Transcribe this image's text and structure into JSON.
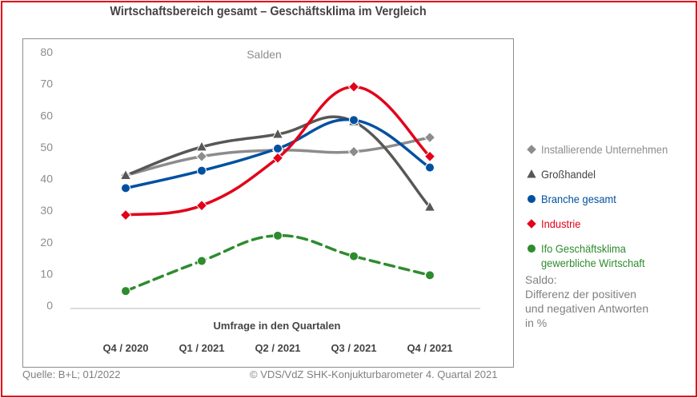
{
  "chart_data": {
    "type": "line",
    "title": "Wirtschaftsbereich gesamt – Geschäftsklima im Vergleich",
    "subtitle": "Salden",
    "xlabel": "Umfrage in den Quartalen",
    "ylabel": "",
    "categories": [
      "Q4 / 2020",
      "Q1 / 2021",
      "Q2 / 2021",
      "Q3 / 2021",
      "Q4 / 2021"
    ],
    "ylim": [
      0,
      80
    ],
    "yticks": [
      0,
      10,
      20,
      30,
      40,
      50,
      60,
      70,
      80
    ],
    "grid": false,
    "legend_position": "right",
    "series": [
      {
        "name": "Installierende Unternehmen",
        "color": "#8c8c8c",
        "marker": "diamond",
        "dashed": false,
        "values": [
          41,
          47,
          49,
          48.5,
          53
        ]
      },
      {
        "name": "Großhandel",
        "color": "#575757",
        "marker": "triangle",
        "dashed": false,
        "values": [
          41,
          50,
          54,
          58,
          31
        ]
      },
      {
        "name": "Branche gesamt",
        "color": "#0050a0",
        "marker": "circle",
        "dashed": false,
        "values": [
          37,
          42.5,
          49.5,
          58.5,
          43.5
        ]
      },
      {
        "name": "Industrie",
        "color": "#e2001a",
        "marker": "diamond",
        "dashed": false,
        "values": [
          28.5,
          31.5,
          46.5,
          69,
          47
        ]
      },
      {
        "name": "Ifo Geschäftsklima\ngewerbliche Wirtschaft",
        "color": "#2e8b2e",
        "marker": "circle",
        "dashed": true,
        "values": [
          4.5,
          14,
          22,
          15.5,
          9.5
        ]
      }
    ]
  },
  "note": "Saldo:\nDifferenz der positiven\nund negativen Antworten\nin %",
  "footer": {
    "source": "Quelle: B+L; 01/2022",
    "copyright": "© VDS/VdZ SHK-Konjukturbarometer 4. Quartal 2021"
  }
}
